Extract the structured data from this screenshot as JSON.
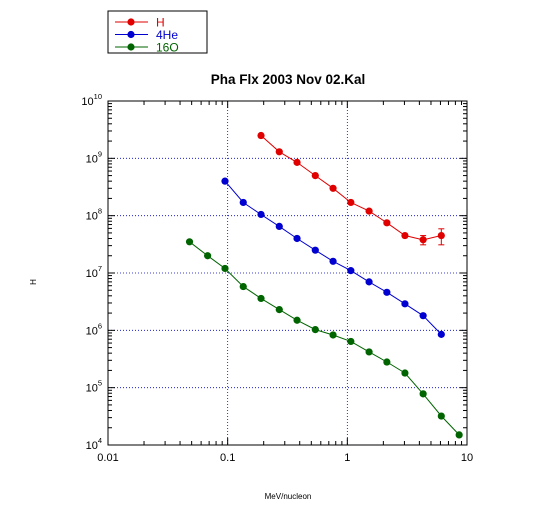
{
  "chart_data": {
    "type": "scatter",
    "title": "Pha Flx 2003 Nov 02.Kal",
    "xlabel": "MeV/nucleon",
    "ylabel": "H",
    "x_scale": "log",
    "y_scale": "log",
    "xlim": [
      0.01,
      10
    ],
    "ylim": [
      10000,
      10000000000
    ],
    "grid": "dotted at decades",
    "legend_position": "top-left, outside plot",
    "x_ticks": [
      {
        "value": 0.01,
        "label": "0.01"
      },
      {
        "value": 0.1,
        "label": "0.1"
      },
      {
        "value": 1,
        "label": "1"
      },
      {
        "value": 10,
        "label": "10"
      }
    ],
    "y_ticks": [
      {
        "value": 10000,
        "base": "10",
        "exp": "4"
      },
      {
        "value": 100000,
        "base": "10",
        "exp": "5"
      },
      {
        "value": 1000000,
        "base": "10",
        "exp": "6"
      },
      {
        "value": 10000000,
        "base": "10",
        "exp": "7"
      },
      {
        "value": 100000000,
        "base": "10",
        "exp": "8"
      },
      {
        "value": 1000000000,
        "base": "10",
        "exp": "9"
      },
      {
        "value": 10000000000,
        "base": "10",
        "exp": "10"
      }
    ],
    "series": [
      {
        "name": "H",
        "color": "#e00000",
        "x": [
          0.19,
          0.27,
          0.38,
          0.54,
          0.76,
          1.07,
          1.52,
          2.14,
          3.03,
          4.3,
          6.1
        ],
        "y": [
          2500000000,
          1300000000,
          850000000,
          500000000,
          300000000,
          170000000,
          120000000,
          75000000,
          45000000,
          38000000,
          45000000
        ],
        "y_err": [
          null,
          null,
          null,
          null,
          null,
          null,
          null,
          null,
          null,
          7000000,
          14000000
        ]
      },
      {
        "name": "4He",
        "color": "#0000d0",
        "x": [
          0.095,
          0.135,
          0.19,
          0.27,
          0.38,
          0.54,
          0.76,
          1.07,
          1.52,
          2.14,
          3.03,
          4.3,
          6.1
        ],
        "y": [
          400000000,
          170000000,
          105000000,
          65000000,
          40000000,
          25000000,
          16000000,
          11000000,
          7000000,
          4600000,
          2900000,
          1800000,
          850000
        ]
      },
      {
        "name": "16O",
        "color": "#006400",
        "x": [
          0.048,
          0.068,
          0.095,
          0.135,
          0.19,
          0.27,
          0.38,
          0.54,
          0.76,
          1.07,
          1.52,
          2.14,
          3.03,
          4.3,
          6.1,
          8.6
        ],
        "y": [
          35000000,
          20000000,
          12000000,
          5800000,
          3600000,
          2300000,
          1500000,
          1030000,
          830000,
          640000,
          420000,
          280000,
          180000,
          78000,
          32000,
          15000
        ]
      }
    ]
  }
}
